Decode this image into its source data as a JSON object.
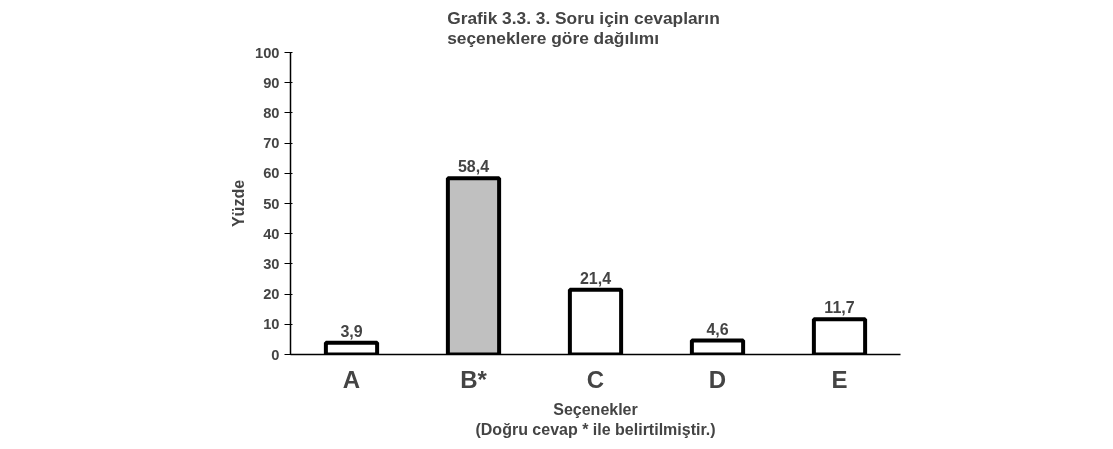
{
  "chart_data": {
    "type": "bar",
    "title": "Grafik 3.3.      3. Soru için cevapların\nseçeneklere göre dağılımı",
    "xlabel": "Seçenekler\n(Doğru cevap * ile belirtilmiştir.)",
    "ylabel": "Yüzde",
    "categories": [
      "A",
      "B*",
      "C",
      "D",
      "E"
    ],
    "values": [
      3.9,
      58.4,
      21.4,
      4.6,
      11.7
    ],
    "colors": [
      "#ffffff",
      "#c0c0c0",
      "#ffffff",
      "#ffffff",
      "#ffffff"
    ],
    "value_labels": [
      "3,9",
      "58,4",
      "21,4",
      "4,6",
      "11,7"
    ],
    "ylim": [
      0,
      100
    ],
    "yticks": [
      0,
      10,
      20,
      30,
      40,
      50,
      60,
      70,
      80,
      90,
      100
    ],
    "grid": false
  }
}
